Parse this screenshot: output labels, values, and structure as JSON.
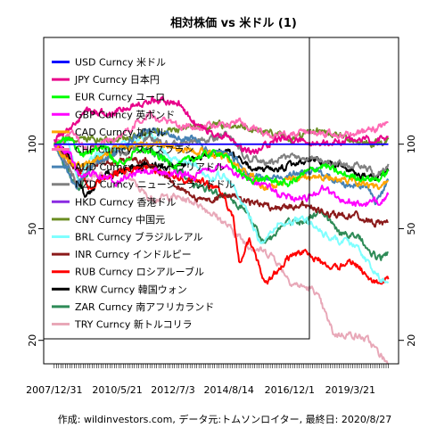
{
  "chart_data": {
    "type": "line",
    "title": "相対株価 vs 米ドル (1)",
    "footer": "作成: wildinvestors.com, データ元:トムソンロイター, 最終日: 2020/8/27",
    "y_scale": "log",
    "ylim": [
      16.5,
      240
    ],
    "y_ticks": [
      20,
      50,
      100
    ],
    "x_range": [
      "2007/12/31",
      "2020/8/27"
    ],
    "x_tick_labels": [
      "2007/12/31",
      "2010/5/21",
      "2012/7/3",
      "2014/8/14",
      "2016/12/1",
      "2019/3/21"
    ],
    "legend_position": "top-left",
    "series": [
      {
        "name": "USD Curncy 米ドル",
        "color": "#0000ff",
        "values": [
          [
            2008.0,
            100
          ],
          [
            2020.66,
            100
          ]
        ]
      },
      {
        "name": "JPY Curncy 日本円",
        "color": "#e8008a",
        "values": [
          [
            2008.0,
            104
          ],
          [
            2008.7,
            115
          ],
          [
            2009.2,
            132
          ],
          [
            2010.0,
            128
          ],
          [
            2010.8,
            136
          ],
          [
            2011.6,
            145
          ],
          [
            2012.0,
            144
          ],
          [
            2012.7,
            140
          ],
          [
            2013.3,
            120
          ],
          [
            2013.9,
            110
          ],
          [
            2014.6,
            108
          ],
          [
            2015.0,
            96
          ],
          [
            2015.6,
            93
          ],
          [
            2016.3,
            103
          ],
          [
            2016.9,
            105
          ],
          [
            2017.6,
            100
          ],
          [
            2018.4,
            101
          ],
          [
            2019.0,
            103
          ],
          [
            2019.7,
            104
          ],
          [
            2020.2,
            103
          ],
          [
            2020.66,
            106
          ]
        ]
      },
      {
        "name": "EUR Curncy ユーロ",
        "color": "#00ff00",
        "values": [
          [
            2008.0,
            101
          ],
          [
            2008.5,
            106
          ],
          [
            2009.0,
            92
          ],
          [
            2009.9,
            98
          ],
          [
            2010.4,
            84
          ],
          [
            2011.3,
            96
          ],
          [
            2012.0,
            90
          ],
          [
            2012.6,
            84
          ],
          [
            2013.4,
            90
          ],
          [
            2014.3,
            94
          ],
          [
            2014.9,
            82
          ],
          [
            2015.3,
            75
          ],
          [
            2016.0,
            75
          ],
          [
            2016.9,
            72
          ],
          [
            2017.5,
            79
          ],
          [
            2018.2,
            84
          ],
          [
            2018.9,
            78
          ],
          [
            2019.6,
            76
          ],
          [
            2020.3,
            75
          ],
          [
            2020.66,
            80
          ]
        ]
      },
      {
        "name": "GBP Curncy 英ポンド",
        "color": "#ff00ff",
        "values": [
          [
            2008.0,
            100
          ],
          [
            2008.6,
            92
          ],
          [
            2009.0,
            74
          ],
          [
            2009.5,
            80
          ],
          [
            2010.3,
            74
          ],
          [
            2011.3,
            80
          ],
          [
            2012.3,
            79
          ],
          [
            2013.3,
            77
          ],
          [
            2014.5,
            85
          ],
          [
            2015.0,
            77
          ],
          [
            2016.0,
            72
          ],
          [
            2016.5,
            66
          ],
          [
            2017.5,
            64
          ],
          [
            2018.2,
            70
          ],
          [
            2018.9,
            63
          ],
          [
            2019.6,
            61
          ],
          [
            2020.2,
            62
          ],
          [
            2020.66,
            66
          ]
        ]
      },
      {
        "name": "CAD Curncy 加ドル",
        "color": "#ffa500",
        "values": [
          [
            2008.0,
            100
          ],
          [
            2008.8,
            82
          ],
          [
            2009.5,
            88
          ],
          [
            2010.5,
            97
          ],
          [
            2011.5,
            101
          ],
          [
            2012.5,
            98
          ],
          [
            2013.5,
            94
          ],
          [
            2014.5,
            89
          ],
          [
            2015.3,
            79
          ],
          [
            2016.0,
            70
          ],
          [
            2016.8,
            74
          ],
          [
            2017.5,
            77
          ],
          [
            2018.5,
            76
          ],
          [
            2019.4,
            74
          ],
          [
            2020.2,
            70
          ],
          [
            2020.66,
            74
          ]
        ]
      },
      {
        "name": "CHF Curncy スイスフラン",
        "color": "#ff69b4",
        "values": [
          [
            2008.0,
            101
          ],
          [
            2008.7,
            109
          ],
          [
            2009.2,
            95
          ],
          [
            2010.0,
            102
          ],
          [
            2010.8,
            112
          ],
          [
            2011.6,
            130
          ],
          [
            2012.3,
            118
          ],
          [
            2013.3,
            115
          ],
          [
            2014.5,
            118
          ],
          [
            2015.0,
            120
          ],
          [
            2015.8,
            110
          ],
          [
            2016.5,
            108
          ],
          [
            2017.5,
            110
          ],
          [
            2018.5,
            109
          ],
          [
            2019.5,
            110
          ],
          [
            2020.2,
            113
          ],
          [
            2020.66,
            120
          ]
        ]
      },
      {
        "name": "AUD Curncy オーストラリアドル",
        "color": "#4682b4",
        "values": [
          [
            2008.0,
            100
          ],
          [
            2008.8,
            70
          ],
          [
            2009.5,
            86
          ],
          [
            2010.5,
            96
          ],
          [
            2011.4,
            112
          ],
          [
            2012.4,
            107
          ],
          [
            2013.3,
            103
          ],
          [
            2013.9,
            93
          ],
          [
            2014.6,
            94
          ],
          [
            2015.3,
            80
          ],
          [
            2016.0,
            75
          ],
          [
            2017.0,
            78
          ],
          [
            2018.0,
            80
          ],
          [
            2019.0,
            72
          ],
          [
            2019.9,
            70
          ],
          [
            2020.2,
            62
          ],
          [
            2020.66,
            74
          ]
        ]
      },
      {
        "name": "NZD Curncy ニュージーランドドル",
        "color": "#808080",
        "values": [
          [
            2008.0,
            100
          ],
          [
            2008.9,
            72
          ],
          [
            2009.5,
            86
          ],
          [
            2010.5,
            92
          ],
          [
            2011.5,
            104
          ],
          [
            2012.5,
            100
          ],
          [
            2013.5,
            102
          ],
          [
            2014.5,
            108
          ],
          [
            2015.3,
            90
          ],
          [
            2016.0,
            86
          ],
          [
            2017.0,
            90
          ],
          [
            2018.0,
            88
          ],
          [
            2019.0,
            84
          ],
          [
            2019.9,
            82
          ],
          [
            2020.2,
            76
          ],
          [
            2020.66,
            85
          ]
        ]
      },
      {
        "name": "HKD Curncy 香港ドル",
        "color": "#8a2be2",
        "values": [
          [
            2008.0,
            100
          ],
          [
            2020.66,
            100
          ]
        ]
      },
      {
        "name": "CNY Curncy 中国元",
        "color": "#6b8e23",
        "values": [
          [
            2008.0,
            100
          ],
          [
            2008.6,
            104
          ],
          [
            2010.4,
            104
          ],
          [
            2011.5,
            110
          ],
          [
            2012.5,
            112
          ],
          [
            2013.5,
            116
          ],
          [
            2014.2,
            117
          ],
          [
            2015.0,
            116
          ],
          [
            2015.7,
            113
          ],
          [
            2016.5,
            108
          ],
          [
            2017.0,
            104
          ],
          [
            2018.0,
            112
          ],
          [
            2019.0,
            106
          ],
          [
            2019.7,
            101
          ],
          [
            2020.3,
            101
          ],
          [
            2020.66,
            104
          ]
        ]
      },
      {
        "name": "BRL Curncy ブラジルレアル",
        "color": "#7fffff",
        "values": [
          [
            2008.0,
            100
          ],
          [
            2008.5,
            105
          ],
          [
            2008.9,
            74
          ],
          [
            2009.5,
            90
          ],
          [
            2010.5,
            98
          ],
          [
            2011.6,
            108
          ],
          [
            2012.5,
            88
          ],
          [
            2013.3,
            86
          ],
          [
            2013.9,
            76
          ],
          [
            2014.5,
            78
          ],
          [
            2015.2,
            60
          ],
          [
            2015.8,
            45
          ],
          [
            2016.5,
            52
          ],
          [
            2017.5,
            54
          ],
          [
            2018.5,
            46
          ],
          [
            2019.4,
            44
          ],
          [
            2020.2,
            34
          ],
          [
            2020.66,
            32
          ]
        ]
      },
      {
        "name": "INR Curncy インドルピー",
        "color": "#8b1a1a",
        "values": [
          [
            2008.0,
            100
          ],
          [
            2008.9,
            80
          ],
          [
            2009.6,
            85
          ],
          [
            2010.8,
            88
          ],
          [
            2011.5,
            88
          ],
          [
            2012.5,
            72
          ],
          [
            2013.6,
            62
          ],
          [
            2014.5,
            66
          ],
          [
            2015.5,
            62
          ],
          [
            2016.5,
            59
          ],
          [
            2017.5,
            61
          ],
          [
            2018.5,
            56
          ],
          [
            2019.4,
            56
          ],
          [
            2020.2,
            52
          ],
          [
            2020.66,
            53
          ]
        ]
      },
      {
        "name": "RUB Curncy ロシアルーブル",
        "color": "#ff0000",
        "values": [
          [
            2008.0,
            100
          ],
          [
            2008.8,
            84
          ],
          [
            2009.3,
            70
          ],
          [
            2010.5,
            80
          ],
          [
            2011.5,
            83
          ],
          [
            2012.5,
            76
          ],
          [
            2013.5,
            74
          ],
          [
            2014.3,
            68
          ],
          [
            2014.8,
            55
          ],
          [
            2015.0,
            38
          ],
          [
            2015.4,
            46
          ],
          [
            2016.0,
            32
          ],
          [
            2016.8,
            39
          ],
          [
            2017.5,
            42
          ],
          [
            2018.5,
            36
          ],
          [
            2019.3,
            38
          ],
          [
            2020.2,
            32
          ],
          [
            2020.66,
            33
          ]
        ]
      },
      {
        "name": "KRW Curncy 韓国ウォン",
        "color": "#000000",
        "values": [
          [
            2008.0,
            100
          ],
          [
            2008.6,
            90
          ],
          [
            2009.2,
            64
          ],
          [
            2009.9,
            78
          ],
          [
            2010.6,
            80
          ],
          [
            2011.5,
            86
          ],
          [
            2012.5,
            82
          ],
          [
            2013.5,
            90
          ],
          [
            2014.5,
            94
          ],
          [
            2015.5,
            82
          ],
          [
            2016.3,
            80
          ],
          [
            2017.0,
            84
          ],
          [
            2017.9,
            88
          ],
          [
            2018.8,
            84
          ],
          [
            2019.6,
            77
          ],
          [
            2020.2,
            76
          ],
          [
            2020.66,
            80
          ]
        ]
      },
      {
        "name": "ZAR Curncy 南アフリカランド",
        "color": "#2e8b57",
        "values": [
          [
            2008.0,
            100
          ],
          [
            2008.9,
            68
          ],
          [
            2009.6,
            90
          ],
          [
            2010.6,
            98
          ],
          [
            2011.6,
            96
          ],
          [
            2012.5,
            84
          ],
          [
            2013.5,
            70
          ],
          [
            2014.5,
            66
          ],
          [
            2015.3,
            58
          ],
          [
            2016.0,
            44
          ],
          [
            2016.8,
            52
          ],
          [
            2017.6,
            54
          ],
          [
            2018.1,
            58
          ],
          [
            2018.8,
            48
          ],
          [
            2019.6,
            46
          ],
          [
            2020.3,
            39
          ],
          [
            2020.66,
            41
          ]
        ]
      },
      {
        "name": "TRY Curncy 新トルコリラ",
        "color": "#e8a8b8",
        "values": [
          [
            2008.0,
            100
          ],
          [
            2008.9,
            72
          ],
          [
            2009.6,
            78
          ],
          [
            2010.6,
            80
          ],
          [
            2011.6,
            64
          ],
          [
            2012.5,
            65
          ],
          [
            2013.4,
            62
          ],
          [
            2014.3,
            54
          ],
          [
            2015.3,
            44
          ],
          [
            2016.3,
            40
          ],
          [
            2017.0,
            32
          ],
          [
            2017.9,
            30
          ],
          [
            2018.6,
            21
          ],
          [
            2019.3,
            21
          ],
          [
            2019.9,
            20
          ],
          [
            2020.3,
            18
          ],
          [
            2020.66,
            16.5
          ]
        ]
      }
    ]
  }
}
